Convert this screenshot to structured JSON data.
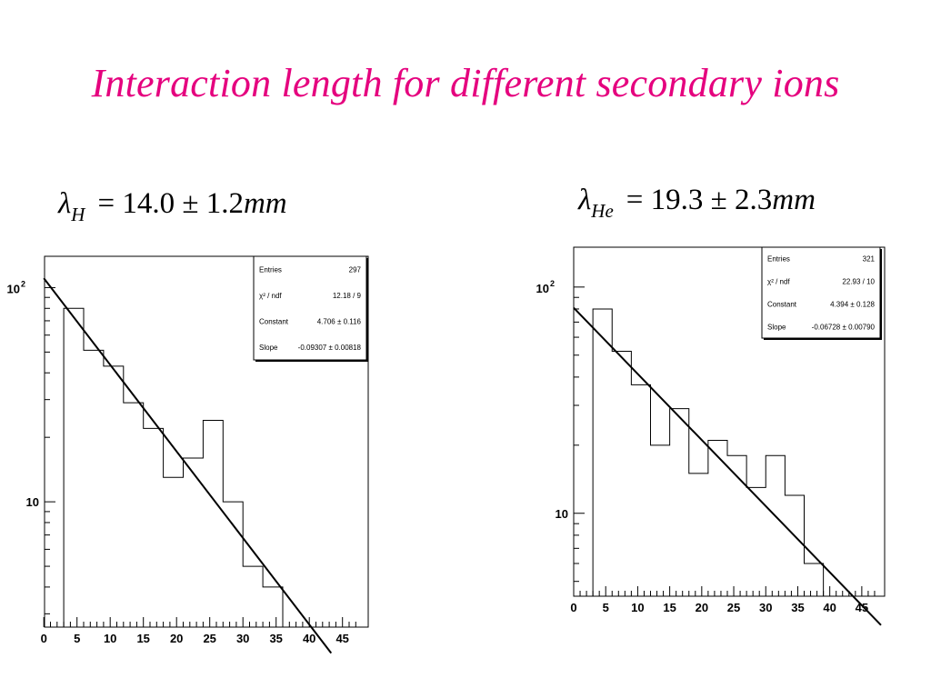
{
  "slide": {
    "title": "Interaction length for different secondary ions"
  },
  "formulas": [
    {
      "symbol": "λ",
      "subscript": "H",
      "expression": "= 14.0 ± 1.2",
      "unit": "mm"
    },
    {
      "symbol": "λ",
      "subscript": "He",
      "expression": "= 19.3 ± 2.3",
      "unit": "mm"
    }
  ],
  "chart_data": [
    {
      "type": "bar",
      "title": "",
      "xlabel": "",
      "ylabel": "",
      "y_scale": "log",
      "xlim": [
        0,
        48
      ],
      "ylim": [
        2.6,
        140
      ],
      "x_ticks": [
        "0",
        "5",
        "10",
        "15",
        "20",
        "25",
        "30",
        "35",
        "40",
        "45"
      ],
      "y_ticks": [
        {
          "value": 10,
          "base": "10",
          "exp": ""
        },
        {
          "value": 100,
          "base": "10",
          "exp": "2"
        }
      ],
      "bin_edges": [
        3,
        6,
        9,
        12,
        15,
        18,
        21,
        24,
        27,
        30,
        33,
        36
      ],
      "values": [
        80,
        51,
        43,
        29,
        22,
        13,
        16,
        24,
        10,
        5,
        4
      ],
      "fit": {
        "constant": 4.706,
        "slope": -0.09307,
        "x_range": [
          0,
          43.3
        ]
      },
      "stats": [
        {
          "label": "Entries",
          "value": "297"
        },
        {
          "label": "χ² / ndf",
          "value": "12.18 / 9"
        },
        {
          "label": "Constant",
          "value": "4.706 ± 0.116"
        },
        {
          "label": "Slope",
          "value": "-0.09307 ± 0.00818"
        }
      ],
      "grid": false,
      "legend_position": "top-right"
    },
    {
      "type": "bar",
      "title": "",
      "xlabel": "",
      "ylabel": "",
      "y_scale": "log",
      "xlim": [
        0,
        48
      ],
      "ylim": [
        4.3,
        150
      ],
      "x_ticks": [
        "0",
        "5",
        "10",
        "15",
        "20",
        "25",
        "30",
        "35",
        "40",
        "45"
      ],
      "y_ticks": [
        {
          "value": 10,
          "base": "10",
          "exp": ""
        },
        {
          "value": 100,
          "base": "10",
          "exp": "2"
        }
      ],
      "bin_edges": [
        3,
        6,
        9,
        12,
        15,
        18,
        21,
        24,
        27,
        30,
        33,
        36,
        39
      ],
      "values": [
        80,
        52,
        37,
        20,
        29,
        15,
        21,
        18,
        13,
        18,
        12,
        6
      ],
      "fit": {
        "constant": 4.394,
        "slope": -0.06728,
        "x_range": [
          0,
          48
        ]
      },
      "stats": [
        {
          "label": "Entries",
          "value": "321"
        },
        {
          "label": "χ² / ndf",
          "value": "22.93 / 10"
        },
        {
          "label": "Constant",
          "value": "4.394 ± 0.128"
        },
        {
          "label": "Slope",
          "value": "-0.06728 ± 0.00790"
        }
      ],
      "grid": false,
      "legend_position": "top-right"
    }
  ]
}
